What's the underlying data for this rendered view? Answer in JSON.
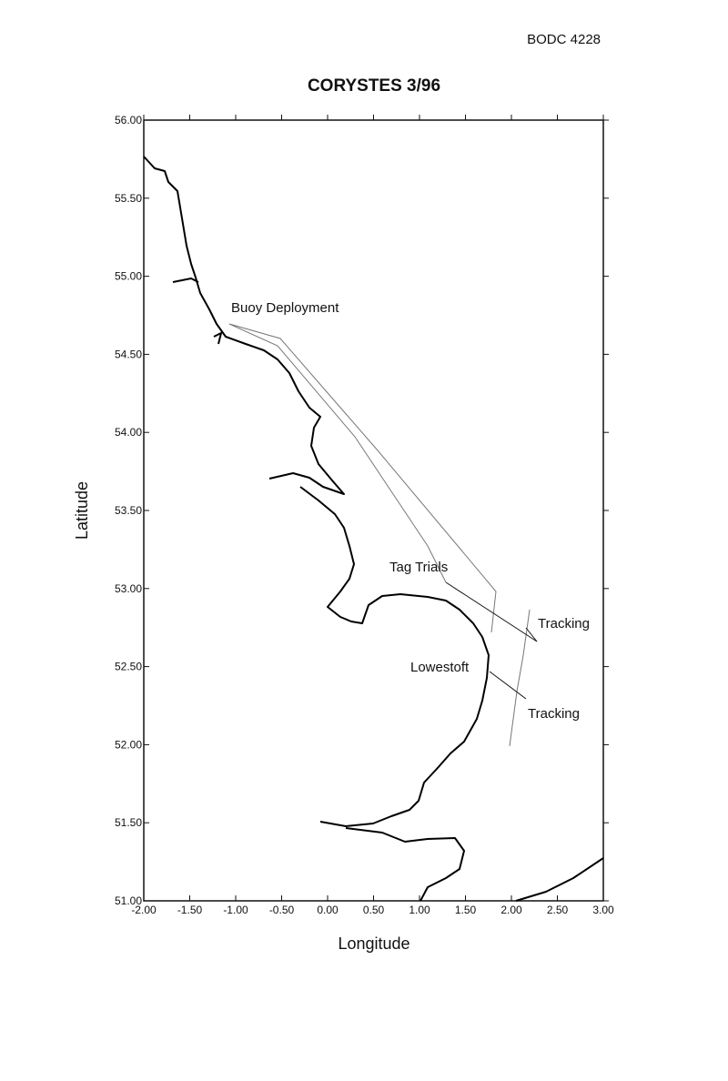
{
  "header": {
    "id": "BODC 4228"
  },
  "map": {
    "title": "CORYSTES 3/96",
    "xlabel": "Longitude",
    "ylabel": "Latitude",
    "xlim": [
      -2,
      3
    ],
    "ylim": [
      51,
      56
    ],
    "xticks": [
      {
        "value": -2,
        "label": "-2.00"
      },
      {
        "value": -1.5,
        "label": "-1.50"
      },
      {
        "value": -1,
        "label": "-1.00"
      },
      {
        "value": -0.5,
        "label": "-0.50"
      },
      {
        "value": 0,
        "label": "0.00"
      },
      {
        "value": 0.5,
        "label": "0.50"
      },
      {
        "value": 1,
        "label": "1.00"
      },
      {
        "value": 1.5,
        "label": "1.50"
      },
      {
        "value": 2,
        "label": "2.00"
      },
      {
        "value": 2.5,
        "label": "2.50"
      },
      {
        "value": 3,
        "label": "3.00"
      }
    ],
    "yticks": [
      {
        "value": 51,
        "label": "51.00"
      },
      {
        "value": 51.5,
        "label": "51.50"
      },
      {
        "value": 52,
        "label": "52.00"
      },
      {
        "value": 52.5,
        "label": "52.50"
      },
      {
        "value": 53,
        "label": "53.00"
      },
      {
        "value": 53.5,
        "label": "53.50"
      },
      {
        "value": 54,
        "label": "54.00"
      },
      {
        "value": 54.5,
        "label": "54.50"
      },
      {
        "value": 55,
        "label": "55.00"
      },
      {
        "value": 55.5,
        "label": "55.50"
      },
      {
        "value": 56,
        "label": "56.00"
      }
    ],
    "annotations": [
      "Buoy Deployment",
      "Tag Trials",
      "Tracking",
      "Lowestoft",
      "Tracking"
    ]
  }
}
